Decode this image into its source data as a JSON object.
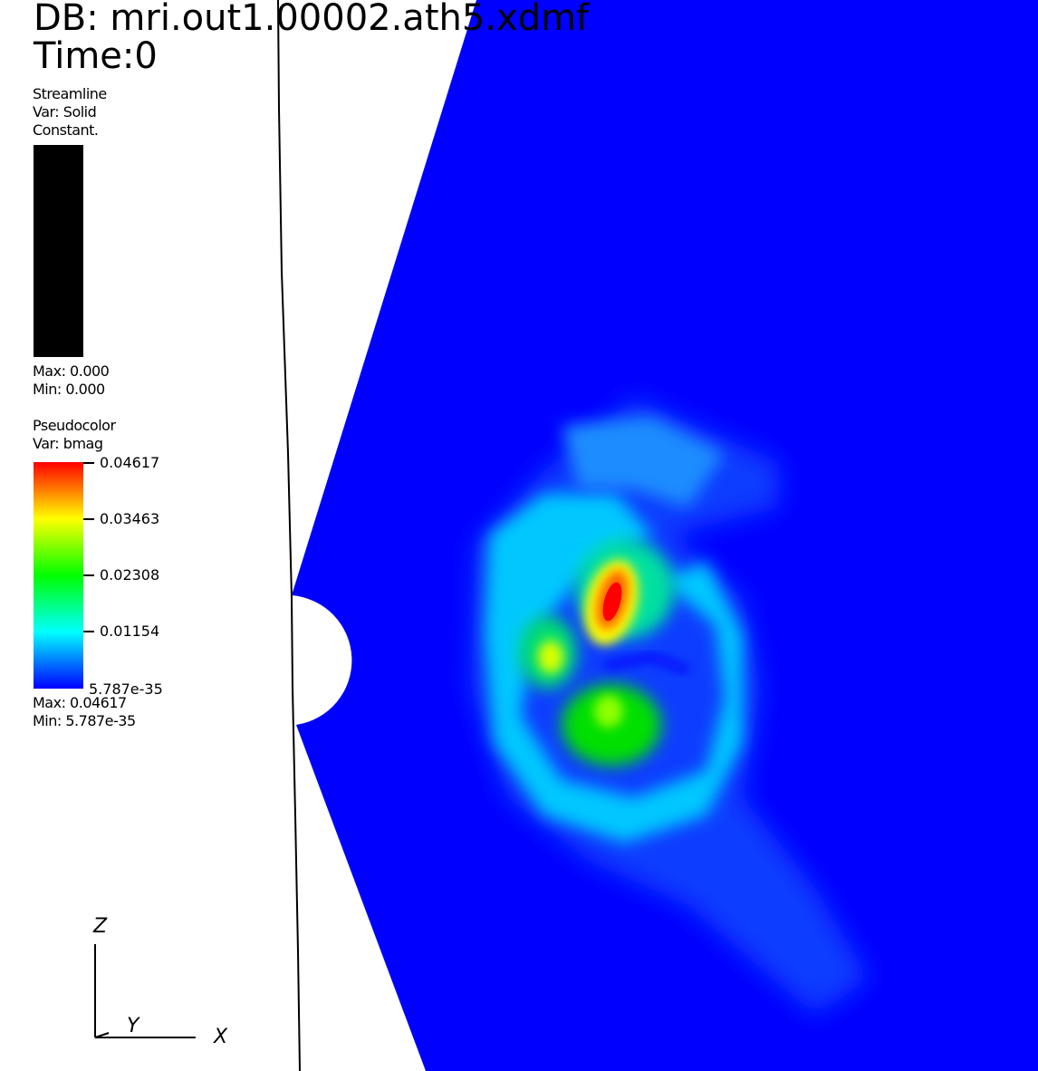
{
  "header": {
    "db": "DB: mri.out1.00002.ath5.xdmf",
    "time": "Time:0"
  },
  "legend_streamline": {
    "title": "Streamline",
    "var": "Var: Solid",
    "mode": "Constant.",
    "max": "Max:  0.000",
    "min": "Min:  0.000",
    "color": "#000000"
  },
  "legend_pseudocolor": {
    "title": "Pseudocolor",
    "var": "Var: bmag",
    "ticks": [
      "0.04617",
      "0.03463",
      "0.02308",
      "0.01154",
      "5.787e-35"
    ],
    "max": "Max:  0.04617",
    "min": "Min:  5.787e-35",
    "colormap": [
      "#0000ff",
      "#00ffff",
      "#00ff00",
      "#ffff00",
      "#ff0000"
    ]
  },
  "triad": {
    "z": "Z",
    "y": "Y",
    "x": "X"
  },
  "field": {
    "background_color": "#0000ff",
    "variable": "bmag"
  }
}
